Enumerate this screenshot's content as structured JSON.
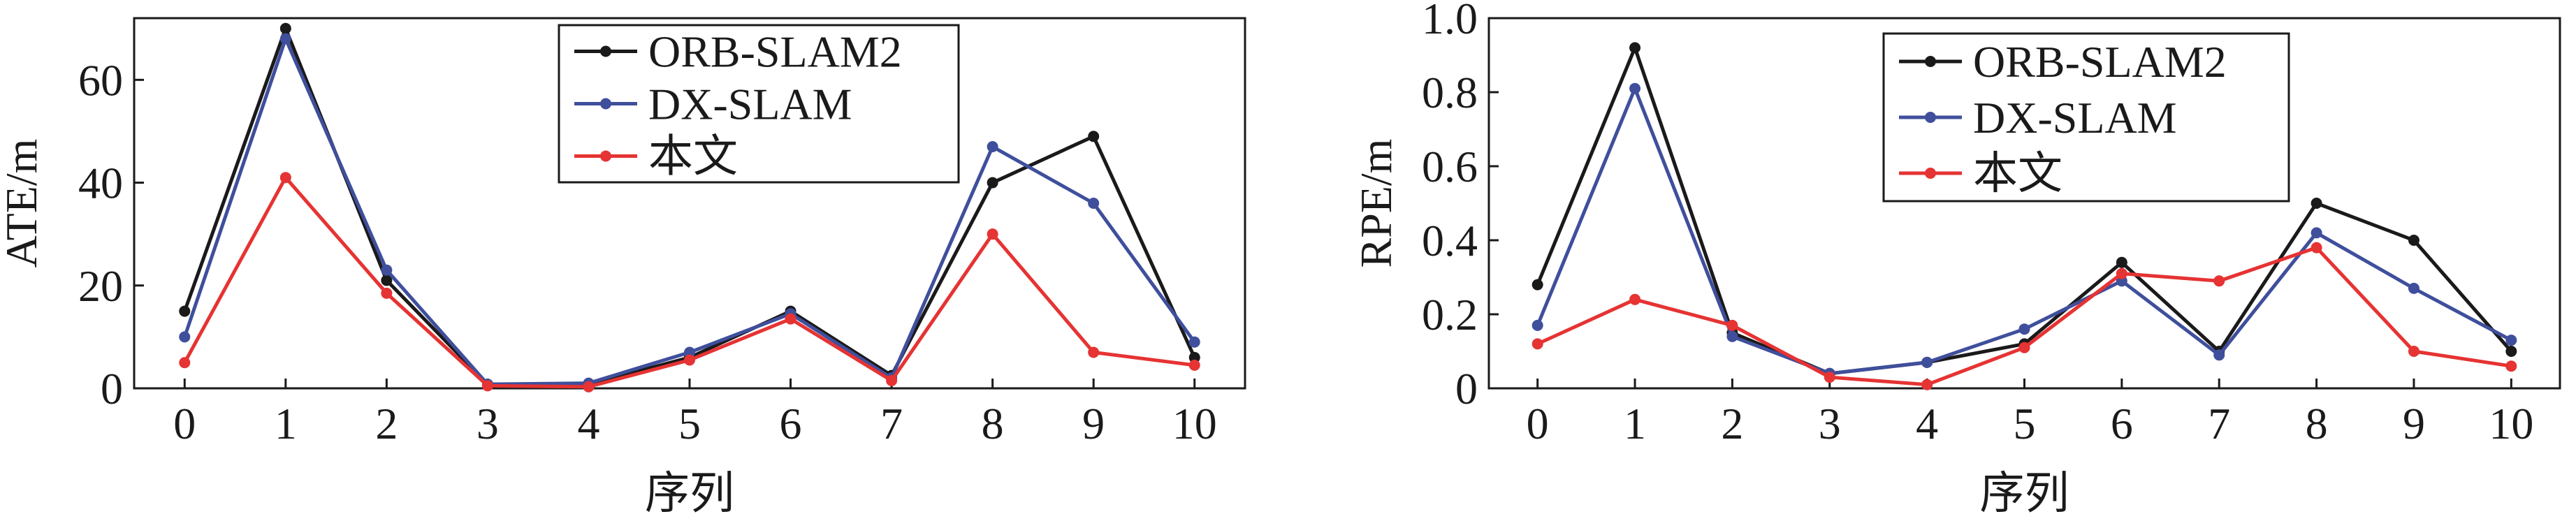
{
  "chart_data": [
    {
      "type": "line",
      "title": "",
      "xlabel": "序列",
      "ylabel": "ATE/m",
      "xlim": [
        -0.5,
        10.5
      ],
      "ylim": [
        0,
        72
      ],
      "xticks": [
        0,
        1,
        2,
        3,
        4,
        5,
        6,
        7,
        8,
        9,
        10
      ],
      "yticks": [
        0,
        20,
        40,
        60
      ],
      "grid": false,
      "legend_position": "top-center",
      "x": [
        0,
        1,
        2,
        3,
        4,
        5,
        6,
        7,
        8,
        9,
        10
      ],
      "series": [
        {
          "name": "ORB-SLAM2",
          "color": "#1a1a1a",
          "values": [
            15,
            70,
            21,
            0.8,
            0.8,
            6,
            15,
            2.5,
            40,
            49,
            6
          ]
        },
        {
          "name": "DX-SLAM",
          "color": "#3f4f9c",
          "values": [
            10,
            68,
            23,
            0.8,
            1,
            7,
            14.5,
            2,
            47,
            36,
            9
          ]
        },
        {
          "name": "本文",
          "color": "#e63333",
          "values": [
            5,
            41,
            18.5,
            0.5,
            0.3,
            5.5,
            13.5,
            1.5,
            30,
            7,
            4.5
          ]
        }
      ]
    },
    {
      "type": "line",
      "title": "",
      "xlabel": "序列",
      "ylabel": "RPE/m",
      "xlim": [
        -0.5,
        10.5
      ],
      "ylim": [
        0,
        1.0
      ],
      "xticks": [
        0,
        1,
        2,
        3,
        4,
        5,
        6,
        7,
        8,
        9,
        10
      ],
      "yticks": [
        "0",
        "0.2",
        "0.4",
        "0.6",
        "0.8",
        "1.0"
      ],
      "grid": false,
      "legend_position": "top-center",
      "x": [
        0,
        1,
        2,
        3,
        4,
        5,
        6,
        7,
        8,
        9,
        10
      ],
      "series": [
        {
          "name": "ORB-SLAM2",
          "color": "#1a1a1a",
          "values": [
            0.28,
            0.92,
            0.15,
            0.04,
            0.07,
            0.12,
            0.34,
            0.1,
            0.5,
            0.4,
            0.1
          ]
        },
        {
          "name": "DX-SLAM",
          "color": "#3f4f9c",
          "values": [
            0.17,
            0.81,
            0.14,
            0.04,
            0.07,
            0.16,
            0.29,
            0.09,
            0.42,
            0.27,
            0.13
          ]
        },
        {
          "name": "本文",
          "color": "#e63333",
          "values": [
            0.12,
            0.24,
            0.17,
            0.03,
            0.01,
            0.11,
            0.31,
            0.29,
            0.38,
            0.1,
            0.06
          ]
        }
      ]
    }
  ]
}
